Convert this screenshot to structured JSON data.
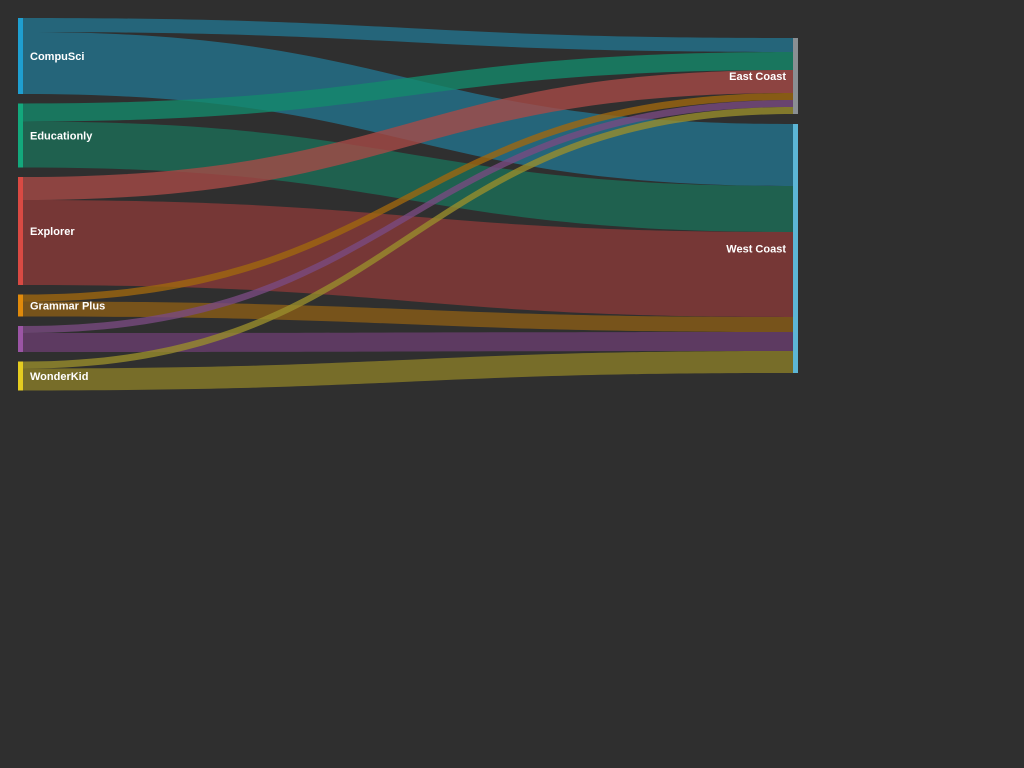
{
  "chart_data": {
    "type": "sankey",
    "background": "#2f2f2f",
    "sources": [
      {
        "id": "compusci",
        "label": "CompuSci",
        "color": "#1f9fd0"
      },
      {
        "id": "educationly",
        "label": "Educationly",
        "color": "#13a87c"
      },
      {
        "id": "explorer",
        "label": "Explorer",
        "color": "#d94a43"
      },
      {
        "id": "grammarplus",
        "label": "Grammar Plus",
        "color": "#e08a0b"
      },
      {
        "id": "purple",
        "label": "",
        "color": "#9b55a5"
      },
      {
        "id": "wonderkid",
        "label": "WonderKid",
        "color": "#e5cc20"
      }
    ],
    "targets": [
      {
        "id": "east",
        "label": "East Coast",
        "color": "#8a8f93"
      },
      {
        "id": "west",
        "label": "West Coast",
        "color": "#5cb6d6"
      }
    ],
    "links": [
      {
        "source": "compusci",
        "target": "east",
        "value": 14,
        "color": "#23758f"
      },
      {
        "source": "compusci",
        "target": "west",
        "value": 62,
        "color": "#23758f"
      },
      {
        "source": "educationly",
        "target": "east",
        "value": 18,
        "color": "#138a6c"
      },
      {
        "source": "educationly",
        "target": "west",
        "value": 46,
        "color": "#1b7058"
      },
      {
        "source": "explorer",
        "target": "east",
        "value": 23,
        "color": "#a84a46"
      },
      {
        "source": "explorer",
        "target": "west",
        "value": 85,
        "color": "#8b3a39"
      },
      {
        "source": "grammarplus",
        "target": "east",
        "value": 7,
        "color": "#a0680e"
      },
      {
        "source": "grammarplus",
        "target": "west",
        "value": 15,
        "color": "#8c5d16"
      },
      {
        "source": "purple",
        "target": "east",
        "value": 7,
        "color": "#7a4a82"
      },
      {
        "source": "purple",
        "target": "west",
        "value": 19,
        "color": "#6a3d70"
      },
      {
        "source": "wonderkid",
        "target": "east",
        "value": 7,
        "color": "#9a8e2c"
      },
      {
        "source": "wonderkid",
        "target": "west",
        "value": 22,
        "color": "#8c7f28"
      }
    ]
  }
}
